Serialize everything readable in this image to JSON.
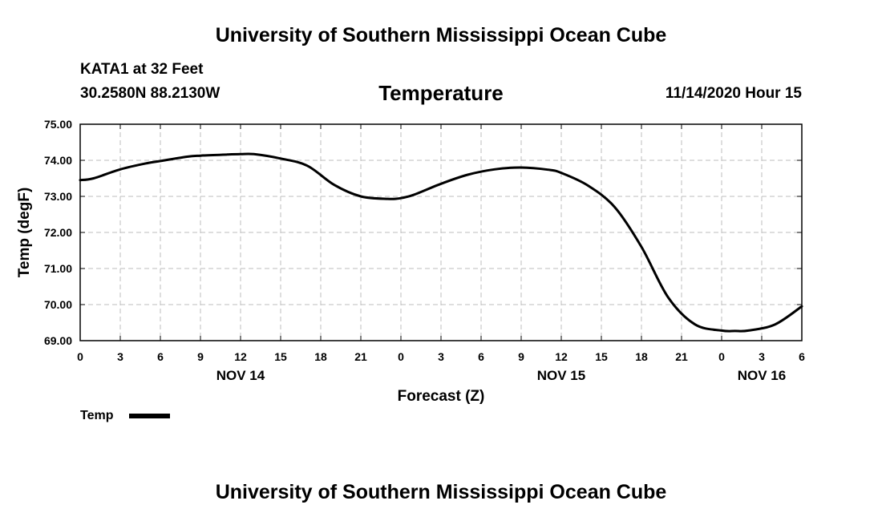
{
  "header": {
    "title": "University of Southern Mississippi Ocean Cube",
    "station": "KATA1 at 32 Feet",
    "coordinates": "30.2580N 88.2130W",
    "parameter": "Temperature",
    "datetime": "11/14/2020 Hour 15"
  },
  "footer": {
    "title": "University of Southern Mississippi Ocean Cube"
  },
  "chart_data": {
    "type": "line",
    "title": "Temperature",
    "xlabel": "Forecast (Z)",
    "ylabel": "Temp (degF)",
    "ylim": [
      69.0,
      75.0
    ],
    "xlim": [
      0,
      54
    ],
    "x_units": "hours since NOV 14 00Z",
    "grid": true,
    "y_ticks": [
      "75.00",
      "74.00",
      "73.00",
      "72.00",
      "71.00",
      "70.00",
      "69.00"
    ],
    "x_ticks": [
      "0",
      "3",
      "6",
      "9",
      "12",
      "15",
      "18",
      "21",
      "0",
      "3",
      "6",
      "9",
      "12",
      "15",
      "18",
      "21",
      "0",
      "3",
      "6"
    ],
    "date_labels": [
      {
        "label": "NOV 14",
        "at_hour": 12
      },
      {
        "label": "NOV 15",
        "at_hour": 36
      },
      {
        "label": "NOV 16",
        "at_hour": 51
      }
    ],
    "legend": {
      "label": "Temp",
      "placement": "bottom-left"
    },
    "series": [
      {
        "name": "Temp",
        "color": "#000000",
        "x": [
          0,
          1,
          3,
          5,
          6,
          8,
          9,
          11,
          12,
          13,
          15,
          17,
          19,
          21,
          23,
          24,
          25,
          27,
          29,
          31,
          33,
          35,
          36,
          38,
          40,
          42,
          44,
          46,
          48,
          49,
          50,
          52,
          54
        ],
        "y": [
          73.45,
          73.5,
          73.75,
          73.92,
          73.98,
          74.1,
          74.13,
          74.16,
          74.17,
          74.17,
          74.05,
          73.85,
          73.32,
          73.0,
          72.93,
          72.95,
          73.05,
          73.35,
          73.6,
          73.75,
          73.8,
          73.74,
          73.65,
          73.3,
          72.7,
          71.6,
          70.2,
          69.45,
          69.28,
          69.27,
          69.28,
          69.45,
          69.95
        ]
      }
    ]
  }
}
